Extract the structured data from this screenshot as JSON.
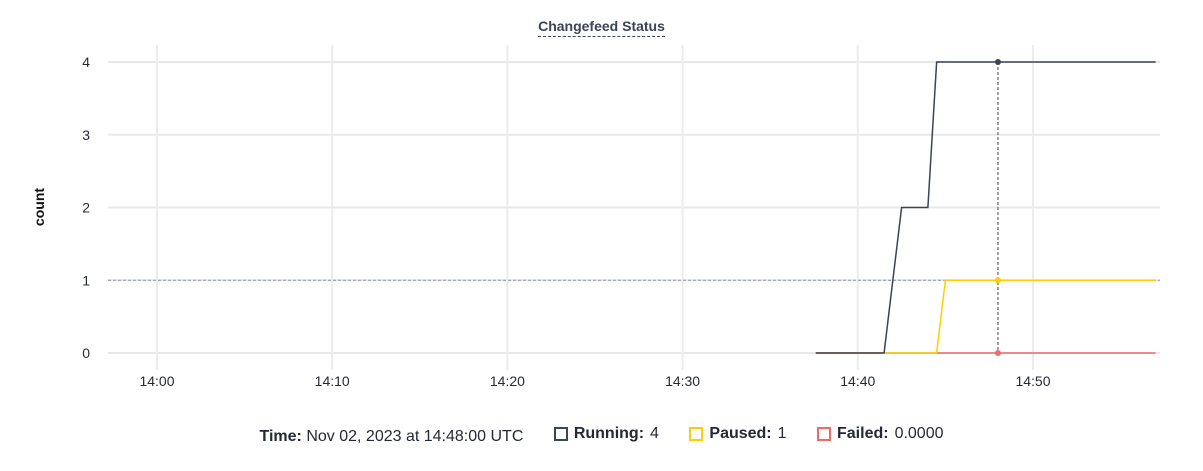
{
  "chart_data": {
    "type": "line",
    "title": "Changefeed Status",
    "ylabel": "count",
    "xlabel": "",
    "ylim": [
      0,
      4
    ],
    "yticks": [
      "0",
      "1",
      "2",
      "3",
      "4"
    ],
    "xlim_minutes": [
      "13:57:00",
      "14:57:15"
    ],
    "xticks": [
      "14:00",
      "14:10",
      "14:20",
      "14:30",
      "14:40",
      "14:50"
    ],
    "grid": true,
    "series": [
      {
        "name": "Running",
        "color": "#394455",
        "points": [
          [
            "14:37:36",
            0
          ],
          [
            "14:41:30",
            0
          ],
          [
            "14:42:30",
            2
          ],
          [
            "14:44:00",
            2
          ],
          [
            "14:44:30",
            4
          ],
          [
            "14:57:00",
            4
          ]
        ]
      },
      {
        "name": "Paused",
        "color": "#ffcd02",
        "points": [
          [
            "14:37:36",
            0
          ],
          [
            "14:44:30",
            0
          ],
          [
            "14:45:00",
            1
          ],
          [
            "14:57:00",
            1
          ]
        ]
      },
      {
        "name": "Failed",
        "color": "#f16969",
        "points": [
          [
            "14:37:36",
            0
          ],
          [
            "14:57:00",
            0
          ]
        ]
      }
    ],
    "hover": {
      "time": "14:48:00",
      "value_line": 1
    }
  },
  "legend": {
    "time_label": "Time:",
    "time_value": "Nov 02, 2023 at 14:48:00 UTC",
    "items": [
      {
        "label": "Running:",
        "value": "4",
        "color": "#394455"
      },
      {
        "label": "Paused:",
        "value": "1",
        "color": "#ffcd02"
      },
      {
        "label": "Failed:",
        "value": "0.0000",
        "color": "#f16969"
      }
    ]
  }
}
